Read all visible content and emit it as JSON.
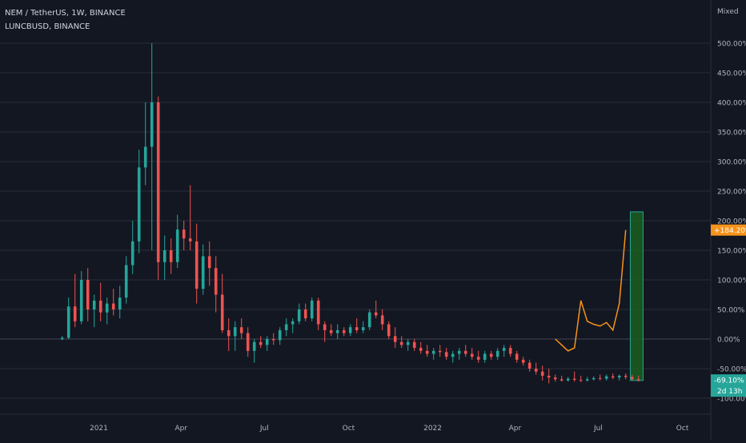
{
  "legend": {
    "main": "NEM / TetherUS, 1W, BINANCE",
    "secondary": "LUNCBUSD, BINANCE"
  },
  "scale_mode": "Mixed",
  "colors": {
    "background": "#131722",
    "grid": "#2a2e39",
    "up": "#26a69a",
    "down": "#ef5350",
    "compare_line": "#f7931a",
    "zero_line": "#787b86",
    "highlight_fill": "#1b5e20",
    "highlight_stroke": "#26a69a"
  },
  "badges": {
    "compare_value": "+184.20%",
    "main_value": "-69.10%",
    "countdown": "2d 13h"
  },
  "chart_data": {
    "type": "candlestick",
    "y_unit": "%",
    "ylim": [
      -100,
      500
    ],
    "yticks": [
      {
        "value": 500,
        "label": "500.00%"
      },
      {
        "value": 450,
        "label": "450.00%"
      },
      {
        "value": 400,
        "label": "400.00%"
      },
      {
        "value": 350,
        "label": "350.00%"
      },
      {
        "value": 300,
        "label": "300.00%"
      },
      {
        "value": 250,
        "label": "250.00%"
      },
      {
        "value": 200,
        "label": "200.00%"
      },
      {
        "value": 150,
        "label": "150.00%"
      },
      {
        "value": 100,
        "label": "100.00%"
      },
      {
        "value": 50,
        "label": "50.00%"
      },
      {
        "value": 0,
        "label": "0.00%"
      },
      {
        "value": -50,
        "label": "-50.00%"
      },
      {
        "value": -100,
        "label": "-100.00%"
      }
    ],
    "xticks": [
      {
        "date": "2021-01-01",
        "label": "2021"
      },
      {
        "date": "2021-04-01",
        "label": "Apr"
      },
      {
        "date": "2021-07-01",
        "label": "Jul"
      },
      {
        "date": "2021-10-01",
        "label": "Oct"
      },
      {
        "date": "2022-01-01",
        "label": "2022"
      },
      {
        "date": "2022-04-01",
        "label": "Apr"
      },
      {
        "date": "2022-07-01",
        "label": "Jul"
      },
      {
        "date": "2022-10-01",
        "label": "Oct"
      }
    ],
    "xlim": [
      "2020-09-15",
      "2022-11-01"
    ],
    "series": [
      {
        "name": "NEM / TetherUS",
        "type": "candlestick",
        "candles": [
          {
            "date": "2020-11-22",
            "o": 0,
            "h": 5,
            "l": -2,
            "c": 2
          },
          {
            "date": "2020-11-29",
            "o": 2,
            "h": 70,
            "l": 0,
            "c": 55
          },
          {
            "date": "2020-12-06",
            "o": 55,
            "h": 110,
            "l": 20,
            "c": 30
          },
          {
            "date": "2020-12-13",
            "o": 30,
            "h": 115,
            "l": 25,
            "c": 100
          },
          {
            "date": "2020-12-20",
            "o": 100,
            "h": 120,
            "l": 30,
            "c": 50
          },
          {
            "date": "2020-12-27",
            "o": 50,
            "h": 75,
            "l": 20,
            "c": 65
          },
          {
            "date": "2021-01-03",
            "o": 65,
            "h": 95,
            "l": 30,
            "c": 45
          },
          {
            "date": "2021-01-10",
            "o": 45,
            "h": 70,
            "l": 25,
            "c": 60
          },
          {
            "date": "2021-01-17",
            "o": 60,
            "h": 85,
            "l": 40,
            "c": 50
          },
          {
            "date": "2021-01-24",
            "o": 50,
            "h": 90,
            "l": 35,
            "c": 70
          },
          {
            "date": "2021-01-31",
            "o": 70,
            "h": 140,
            "l": 60,
            "c": 125
          },
          {
            "date": "2021-02-07",
            "o": 125,
            "h": 200,
            "l": 110,
            "c": 165
          },
          {
            "date": "2021-02-14",
            "o": 165,
            "h": 320,
            "l": 145,
            "c": 290
          },
          {
            "date": "2021-02-21",
            "o": 290,
            "h": 400,
            "l": 260,
            "c": 325
          },
          {
            "date": "2021-02-28",
            "o": 325,
            "h": 500,
            "l": 150,
            "c": 400
          },
          {
            "date": "2021-03-07",
            "o": 400,
            "h": 410,
            "l": 100,
            "c": 130
          },
          {
            "date": "2021-03-14",
            "o": 130,
            "h": 175,
            "l": 100,
            "c": 150
          },
          {
            "date": "2021-03-21",
            "o": 150,
            "h": 170,
            "l": 110,
            "c": 130
          },
          {
            "date": "2021-03-28",
            "o": 130,
            "h": 210,
            "l": 120,
            "c": 185
          },
          {
            "date": "2021-04-04",
            "o": 185,
            "h": 200,
            "l": 150,
            "c": 170
          },
          {
            "date": "2021-04-11",
            "o": 170,
            "h": 260,
            "l": 150,
            "c": 165
          },
          {
            "date": "2021-04-18",
            "o": 165,
            "h": 195,
            "l": 60,
            "c": 85
          },
          {
            "date": "2021-04-25",
            "o": 85,
            "h": 160,
            "l": 75,
            "c": 140
          },
          {
            "date": "2021-05-02",
            "o": 140,
            "h": 165,
            "l": 90,
            "c": 120
          },
          {
            "date": "2021-05-09",
            "o": 120,
            "h": 140,
            "l": 45,
            "c": 75
          },
          {
            "date": "2021-05-16",
            "o": 75,
            "h": 110,
            "l": 10,
            "c": 15
          },
          {
            "date": "2021-05-23",
            "o": 15,
            "h": 35,
            "l": -20,
            "c": 5
          },
          {
            "date": "2021-05-30",
            "o": 5,
            "h": 30,
            "l": -20,
            "c": 20
          },
          {
            "date": "2021-06-06",
            "o": 20,
            "h": 35,
            "l": 0,
            "c": 10
          },
          {
            "date": "2021-06-13",
            "o": 10,
            "h": 20,
            "l": -30,
            "c": -20
          },
          {
            "date": "2021-06-20",
            "o": -20,
            "h": 0,
            "l": -40,
            "c": -5
          },
          {
            "date": "2021-06-27",
            "o": -5,
            "h": 5,
            "l": -15,
            "c": -10
          },
          {
            "date": "2021-07-04",
            "o": -10,
            "h": 5,
            "l": -20,
            "c": 0
          },
          {
            "date": "2021-07-11",
            "o": 0,
            "h": 10,
            "l": -10,
            "c": -2
          },
          {
            "date": "2021-07-18",
            "o": -2,
            "h": 20,
            "l": -10,
            "c": 15
          },
          {
            "date": "2021-07-25",
            "o": 15,
            "h": 35,
            "l": 5,
            "c": 25
          },
          {
            "date": "2021-08-01",
            "o": 25,
            "h": 35,
            "l": 10,
            "c": 30
          },
          {
            "date": "2021-08-08",
            "o": 30,
            "h": 60,
            "l": 25,
            "c": 50
          },
          {
            "date": "2021-08-15",
            "o": 50,
            "h": 60,
            "l": 30,
            "c": 35
          },
          {
            "date": "2021-08-22",
            "o": 35,
            "h": 70,
            "l": 30,
            "c": 65
          },
          {
            "date": "2021-08-29",
            "o": 65,
            "h": 70,
            "l": 15,
            "c": 25
          },
          {
            "date": "2021-09-05",
            "o": 25,
            "h": 30,
            "l": -5,
            "c": 15
          },
          {
            "date": "2021-09-12",
            "o": 15,
            "h": 25,
            "l": 5,
            "c": 10
          },
          {
            "date": "2021-09-19",
            "o": 10,
            "h": 25,
            "l": 0,
            "c": 15
          },
          {
            "date": "2021-09-26",
            "o": 15,
            "h": 20,
            "l": 5,
            "c": 10
          },
          {
            "date": "2021-10-03",
            "o": 10,
            "h": 25,
            "l": 5,
            "c": 20
          },
          {
            "date": "2021-10-10",
            "o": 20,
            "h": 35,
            "l": 10,
            "c": 15
          },
          {
            "date": "2021-10-17",
            "o": 15,
            "h": 30,
            "l": 10,
            "c": 20
          },
          {
            "date": "2021-10-24",
            "o": 20,
            "h": 50,
            "l": 15,
            "c": 45
          },
          {
            "date": "2021-10-31",
            "o": 45,
            "h": 65,
            "l": 35,
            "c": 40
          },
          {
            "date": "2021-11-07",
            "o": 40,
            "h": 50,
            "l": 15,
            "c": 25
          },
          {
            "date": "2021-11-14",
            "o": 25,
            "h": 30,
            "l": 0,
            "c": 5
          },
          {
            "date": "2021-11-21",
            "o": 5,
            "h": 20,
            "l": -15,
            "c": -5
          },
          {
            "date": "2021-11-28",
            "o": -5,
            "h": 5,
            "l": -15,
            "c": -10
          },
          {
            "date": "2021-12-05",
            "o": -10,
            "h": 0,
            "l": -20,
            "c": -5
          },
          {
            "date": "2021-12-12",
            "o": -5,
            "h": 0,
            "l": -20,
            "c": -15
          },
          {
            "date": "2021-12-19",
            "o": -15,
            "h": -5,
            "l": -25,
            "c": -20
          },
          {
            "date": "2021-12-26",
            "o": -20,
            "h": -10,
            "l": -30,
            "c": -25
          },
          {
            "date": "2022-01-02",
            "o": -25,
            "h": -15,
            "l": -35,
            "c": -20
          },
          {
            "date": "2022-01-09",
            "o": -20,
            "h": -10,
            "l": -30,
            "c": -22
          },
          {
            "date": "2022-01-16",
            "o": -22,
            "h": -15,
            "l": -35,
            "c": -30
          },
          {
            "date": "2022-01-23",
            "o": -30,
            "h": -20,
            "l": -40,
            "c": -25
          },
          {
            "date": "2022-01-30",
            "o": -25,
            "h": -15,
            "l": -35,
            "c": -20
          },
          {
            "date": "2022-02-06",
            "o": -20,
            "h": -10,
            "l": -30,
            "c": -25
          },
          {
            "date": "2022-02-13",
            "o": -25,
            "h": -15,
            "l": -35,
            "c": -30
          },
          {
            "date": "2022-02-20",
            "o": -30,
            "h": -20,
            "l": -40,
            "c": -35
          },
          {
            "date": "2022-02-27",
            "o": -35,
            "h": -20,
            "l": -40,
            "c": -25
          },
          {
            "date": "2022-03-06",
            "o": -25,
            "h": -20,
            "l": -35,
            "c": -30
          },
          {
            "date": "2022-03-13",
            "o": -30,
            "h": -15,
            "l": -35,
            "c": -20
          },
          {
            "date": "2022-03-20",
            "o": -20,
            "h": -10,
            "l": -30,
            "c": -15
          },
          {
            "date": "2022-03-27",
            "o": -15,
            "h": -10,
            "l": -30,
            "c": -25
          },
          {
            "date": "2022-04-03",
            "o": -25,
            "h": -20,
            "l": -40,
            "c": -35
          },
          {
            "date": "2022-04-10",
            "o": -35,
            "h": -30,
            "l": -45,
            "c": -40
          },
          {
            "date": "2022-04-17",
            "o": -40,
            "h": -35,
            "l": -55,
            "c": -50
          },
          {
            "date": "2022-04-24",
            "o": -50,
            "h": -40,
            "l": -60,
            "c": -55
          },
          {
            "date": "2022-05-01",
            "o": -55,
            "h": -45,
            "l": -70,
            "c": -62
          },
          {
            "date": "2022-05-08",
            "o": -62,
            "h": -50,
            "l": -75,
            "c": -65
          },
          {
            "date": "2022-05-15",
            "o": -65,
            "h": -60,
            "l": -72,
            "c": -68
          },
          {
            "date": "2022-05-22",
            "o": -68,
            "h": -62,
            "l": -72,
            "c": -70
          },
          {
            "date": "2022-05-29",
            "o": -70,
            "h": -64,
            "l": -72,
            "c": -67
          },
          {
            "date": "2022-06-05",
            "o": -67,
            "h": -55,
            "l": -72,
            "c": -69
          },
          {
            "date": "2022-06-12",
            "o": -69,
            "h": -62,
            "l": -73,
            "c": -70
          },
          {
            "date": "2022-06-19",
            "o": -70,
            "h": -64,
            "l": -72,
            "c": -68
          },
          {
            "date": "2022-06-26",
            "o": -68,
            "h": -63,
            "l": -70,
            "c": -66
          },
          {
            "date": "2022-07-03",
            "o": -66,
            "h": -60,
            "l": -70,
            "c": -67
          },
          {
            "date": "2022-07-10",
            "o": -67,
            "h": -60,
            "l": -70,
            "c": -63
          },
          {
            "date": "2022-07-17",
            "o": -63,
            "h": -58,
            "l": -68,
            "c": -65
          },
          {
            "date": "2022-07-24",
            "o": -65,
            "h": -60,
            "l": -70,
            "c": -62
          },
          {
            "date": "2022-07-31",
            "o": -62,
            "h": -58,
            "l": -68,
            "c": -64
          },
          {
            "date": "2022-08-07",
            "o": -64,
            "h": -60,
            "l": -70,
            "c": -68
          },
          {
            "date": "2022-08-14",
            "o": -68,
            "h": -62,
            "l": -72,
            "c": -69.1
          }
        ]
      },
      {
        "name": "LUNCBUSD",
        "type": "line",
        "points": [
          {
            "date": "2022-05-15",
            "v": 0
          },
          {
            "date": "2022-05-22",
            "v": -10
          },
          {
            "date": "2022-05-29",
            "v": -20
          },
          {
            "date": "2022-06-05",
            "v": -15
          },
          {
            "date": "2022-06-12",
            "v": 65
          },
          {
            "date": "2022-06-19",
            "v": 30
          },
          {
            "date": "2022-06-26",
            "v": 25
          },
          {
            "date": "2022-07-03",
            "v": 22
          },
          {
            "date": "2022-07-10",
            "v": 28
          },
          {
            "date": "2022-07-17",
            "v": 15
          },
          {
            "date": "2022-07-24",
            "v": 60
          },
          {
            "date": "2022-07-31",
            "v": 184.2
          }
        ]
      }
    ],
    "highlight_range": {
      "start": "2022-08-05",
      "end": "2022-08-19",
      "low": -70,
      "high": 215
    }
  }
}
